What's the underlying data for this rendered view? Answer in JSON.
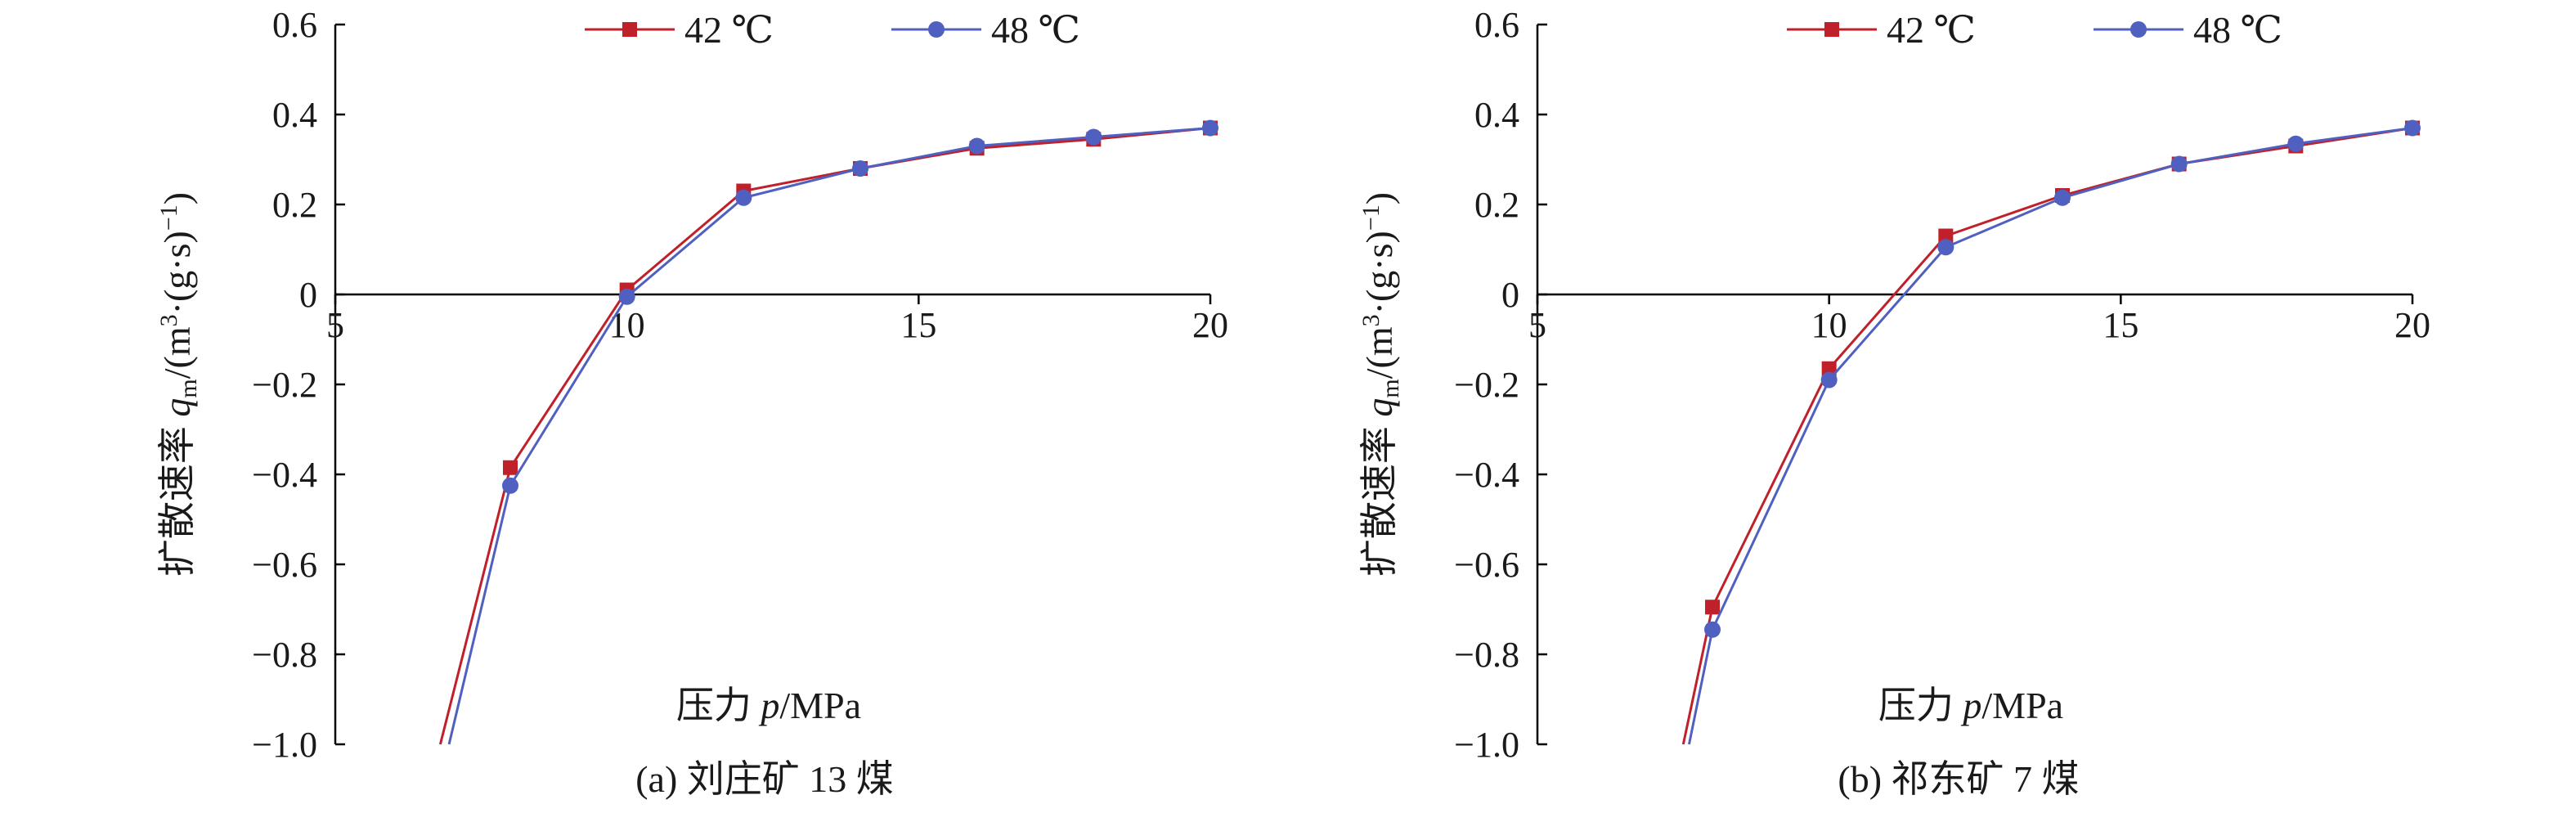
{
  "chart_data": [
    {
      "type": "line",
      "caption": "(a) 刘庄矿 13 煤",
      "xlabel_prefix": "压力 ",
      "xlabel_var": "p",
      "xlabel_unit": "/MPa",
      "ylabel_prefix": "扩散速率 ",
      "ylabel_var": "q",
      "ylabel_sub": "m",
      "ylabel_unit_a": "/(m",
      "ylabel_unit_sup": "3",
      "ylabel_unit_b": "·(g·s)",
      "ylabel_unit_sup2": "−1",
      "ylabel_unit_c": ")",
      "xlim": [
        5,
        20
      ],
      "ylim": [
        -1.0,
        0.6
      ],
      "xticks": [
        5,
        10,
        15,
        20
      ],
      "xtick_labels": [
        "5",
        "10",
        "15",
        "20"
      ],
      "yticks": [
        0.6,
        0.4,
        0.2,
        0,
        -0.2,
        -0.4,
        -0.6,
        -0.8,
        -1.0
      ],
      "ytick_labels": [
        "0.6",
        "0.4",
        "0.2",
        "0",
        "−0.2",
        "−0.4",
        "−0.6",
        "−0.8",
        "−1.0"
      ],
      "x_axis_at_y": 0,
      "legend_position": "top",
      "series": [
        {
          "name": "42 ℃",
          "color": "#c0202a",
          "marker": "square",
          "x": [
            8,
            10,
            12,
            14,
            16,
            18,
            20
          ],
          "y": [
            -0.385,
            0.01,
            0.23,
            0.28,
            0.325,
            0.345,
            0.37
          ],
          "lead_in": {
            "x": 6.8,
            "y": -1.0
          }
        },
        {
          "name": "48 ℃",
          "color": "#5060c0",
          "marker": "circle",
          "x": [
            8,
            10,
            12,
            14,
            16,
            18,
            20
          ],
          "y": [
            -0.425,
            -0.005,
            0.215,
            0.28,
            0.33,
            0.35,
            0.37
          ],
          "lead_in": {
            "x": 6.95,
            "y": -1.0
          }
        }
      ]
    },
    {
      "type": "line",
      "caption": "(b) 祁东矿 7 煤",
      "xlabel_prefix": "压力 ",
      "xlabel_var": "p",
      "xlabel_unit": "/MPa",
      "ylabel_prefix": "扩散速率 ",
      "ylabel_var": "q",
      "ylabel_sub": "m",
      "ylabel_unit_a": "/(m",
      "ylabel_unit_sup": "3",
      "ylabel_unit_b": "·(g·s)",
      "ylabel_unit_sup2": "−1",
      "ylabel_unit_c": ")",
      "xlim": [
        5,
        20
      ],
      "ylim": [
        -1.0,
        0.6
      ],
      "xticks": [
        5,
        10,
        15,
        20
      ],
      "xtick_labels": [
        "5",
        "10",
        "15",
        "20"
      ],
      "yticks": [
        0.6,
        0.4,
        0.2,
        0,
        -0.2,
        -0.4,
        -0.6,
        -0.8,
        -1.0
      ],
      "ytick_labels": [
        "0.6",
        "0.4",
        "0.2",
        "0",
        "−0.2",
        "−0.4",
        "−0.6",
        "−0.8",
        "−1.0"
      ],
      "x_axis_at_y": 0,
      "legend_position": "top",
      "series": [
        {
          "name": "42 ℃",
          "color": "#c0202a",
          "marker": "square",
          "x": [
            8,
            10,
            12,
            14,
            16,
            18,
            20
          ],
          "y": [
            -0.695,
            -0.165,
            0.13,
            0.22,
            0.29,
            0.33,
            0.37
          ],
          "lead_in": {
            "x": 7.5,
            "y": -1.0
          }
        },
        {
          "name": "48 ℃",
          "color": "#5060c0",
          "marker": "circle",
          "x": [
            8,
            10,
            12,
            14,
            16,
            18,
            20
          ],
          "y": [
            -0.745,
            -0.19,
            0.105,
            0.215,
            0.29,
            0.335,
            0.37
          ],
          "lead_in": {
            "x": 7.6,
            "y": -1.0
          }
        }
      ]
    }
  ]
}
